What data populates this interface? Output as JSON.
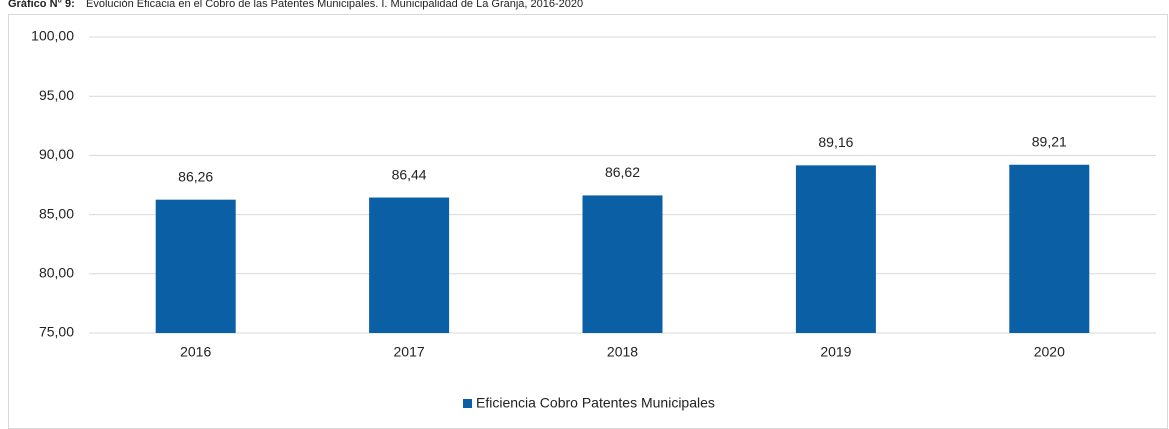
{
  "chart_data": {
    "type": "bar",
    "title_label": "Gráfico N° 9:",
    "title": "Evolución Eficacia en el Cobro de las Patentes Municipales. I. Municipalidad de La Granja, 2016-2020",
    "categories": [
      "2016",
      "2017",
      "2018",
      "2019",
      "2020"
    ],
    "series": [
      {
        "name": "Eficiencia Cobro Patentes Municipales",
        "color": "#0b5fa5",
        "values": [
          86.26,
          86.44,
          86.62,
          89.16,
          89.21
        ],
        "value_labels": [
          "86,26",
          "86,44",
          "86,62",
          "89,16",
          "89,21"
        ]
      }
    ],
    "ylim": [
      75,
      100
    ],
    "yticks": [
      {
        "value": 75,
        "label": "75,00"
      },
      {
        "value": 80,
        "label": "80,00"
      },
      {
        "value": 85,
        "label": "85,00"
      },
      {
        "value": 90,
        "label": "90,00"
      },
      {
        "value": 95,
        "label": "95,00"
      },
      {
        "value": 100,
        "label": "100,00"
      }
    ],
    "grid": true,
    "legend": "bottom"
  }
}
